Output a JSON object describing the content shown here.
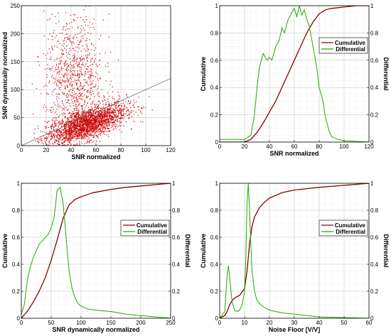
{
  "chart_data": [
    {
      "id": "tl",
      "type": "scatter",
      "xlabel": "SNR normalized",
      "ylabel": "SNR dynamically normalized",
      "xlim": [
        0,
        120
      ],
      "ylim": [
        0,
        250
      ],
      "xticks": [
        0,
        20,
        40,
        60,
        80,
        100,
        120
      ],
      "yticks": [
        0,
        50,
        100,
        150,
        200,
        250
      ],
      "grid": true,
      "series": [
        {
          "kind": "points",
          "color": "#cc0000",
          "clusters": [
            {
              "x_center": 52,
              "x_spread": 16,
              "slope": 0.75,
              "y_spread": 14,
              "count": 2400
            },
            {
              "x_center": 42,
              "x_spread": 12,
              "y_center": 120,
              "y_spread": 55,
              "count": 900
            }
          ]
        },
        {
          "kind": "trend",
          "color": "#777777",
          "x": [
            0,
            120
          ],
          "y": [
            0,
            120
          ]
        }
      ]
    },
    {
      "id": "tr",
      "type": "line",
      "xlabel": "SNR normalized",
      "ylabel_left": "Cumulative",
      "ylabel_right": "Differential",
      "xlim": [
        0,
        120
      ],
      "ylim": [
        0,
        1
      ],
      "xticks": [
        0,
        20,
        40,
        60,
        80,
        100,
        120
      ],
      "yticks": [
        0,
        0.2,
        0.4,
        0.6,
        0.8,
        1
      ],
      "grid": true,
      "legend": "top-right",
      "series": [
        {
          "name": "Cumulative",
          "color": "#8b0000",
          "x": [
            0,
            20,
            25,
            30,
            35,
            40,
            45,
            50,
            55,
            60,
            65,
            70,
            75,
            80,
            85,
            90,
            100,
            110,
            120
          ],
          "y": [
            0,
            0,
            0.02,
            0.07,
            0.14,
            0.22,
            0.3,
            0.4,
            0.5,
            0.6,
            0.7,
            0.8,
            0.88,
            0.94,
            0.97,
            0.98,
            0.99,
            1,
            1
          ]
        },
        {
          "name": "Differential",
          "color": "#22aa00",
          "x": [
            0,
            20,
            25,
            28,
            30,
            32,
            35,
            38,
            40,
            42,
            45,
            48,
            50,
            52,
            55,
            58,
            60,
            62,
            64,
            66,
            68,
            70,
            72,
            75,
            78,
            80,
            83,
            85,
            88,
            90,
            95,
            100,
            120
          ],
          "y": [
            0.02,
            0.02,
            0.05,
            0.2,
            0.4,
            0.55,
            0.65,
            0.6,
            0.62,
            0.6,
            0.7,
            0.75,
            0.84,
            0.8,
            0.9,
            0.95,
            0.98,
            0.92,
            1.0,
            0.93,
            0.97,
            0.9,
            0.85,
            0.7,
            0.55,
            0.4,
            0.3,
            0.18,
            0.08,
            0.04,
            0.02,
            0.01,
            0
          ]
        }
      ]
    },
    {
      "id": "bl",
      "type": "line",
      "xlabel": "SNR dynamically normalized",
      "ylabel_left": "Cumulative",
      "ylabel_right": "Differential",
      "xlim": [
        0,
        250
      ],
      "ylim": [
        0,
        1
      ],
      "xticks": [
        0,
        50,
        100,
        150,
        200,
        250
      ],
      "yticks": [
        0,
        0.2,
        0.4,
        0.6,
        0.8,
        1
      ],
      "grid": true,
      "legend": "middle-right",
      "series": [
        {
          "name": "Cumulative",
          "color": "#8b0000",
          "x": [
            0,
            10,
            20,
            30,
            40,
            50,
            60,
            70,
            80,
            90,
            100,
            120,
            150,
            175,
            200,
            225,
            250
          ],
          "y": [
            0,
            0.05,
            0.12,
            0.2,
            0.3,
            0.43,
            0.58,
            0.74,
            0.84,
            0.88,
            0.9,
            0.93,
            0.955,
            0.97,
            0.98,
            0.99,
            1
          ]
        },
        {
          "name": "Differential",
          "color": "#22aa00",
          "x": [
            0,
            5,
            10,
            15,
            20,
            25,
            30,
            35,
            40,
            45,
            50,
            55,
            60,
            65,
            70,
            75,
            80,
            85,
            90,
            95,
            100,
            110,
            125,
            150,
            175,
            200,
            225,
            250
          ],
          "y": [
            0.03,
            0.1,
            0.28,
            0.38,
            0.45,
            0.5,
            0.55,
            0.57,
            0.6,
            0.62,
            0.67,
            0.75,
            0.95,
            0.97,
            0.85,
            0.6,
            0.35,
            0.22,
            0.15,
            0.11,
            0.09,
            0.07,
            0.06,
            0.05,
            0.03,
            0.02,
            0.01,
            0
          ]
        }
      ]
    },
    {
      "id": "br",
      "type": "line",
      "xlabel": "Noise Floor [V/V]",
      "ylabel_left": "Cumulative",
      "ylabel_right": "Differential",
      "xlim": [
        0,
        60
      ],
      "ylim": [
        0,
        1
      ],
      "xticks": [
        0,
        10,
        20,
        30,
        40,
        50,
        60
      ],
      "yticks": [
        0,
        0.2,
        0.4,
        0.6,
        0.8,
        1
      ],
      "grid": true,
      "legend": "middle-right",
      "series": [
        {
          "name": "Cumulative",
          "color": "#8b0000",
          "x": [
            0,
            2,
            3,
            4,
            5,
            6,
            8,
            10,
            11,
            12,
            13,
            14,
            16,
            18,
            20,
            25,
            30,
            40,
            50,
            60
          ],
          "y": [
            0,
            0.02,
            0.05,
            0.1,
            0.13,
            0.15,
            0.17,
            0.22,
            0.35,
            0.55,
            0.68,
            0.75,
            0.82,
            0.86,
            0.89,
            0.93,
            0.95,
            0.97,
            0.985,
            1
          ]
        },
        {
          "name": "Differential",
          "color": "#22aa00",
          "x": [
            0,
            2,
            3,
            3.5,
            4,
            5,
            6,
            7,
            8,
            9,
            10,
            10.5,
            11,
            11.5,
            12,
            12.5,
            13,
            14,
            15,
            17,
            20,
            25,
            30,
            40,
            50,
            60
          ],
          "y": [
            0,
            0.05,
            0.32,
            0.39,
            0.3,
            0.12,
            0.06,
            0.05,
            0.06,
            0.1,
            0.2,
            0.45,
            0.85,
            1.0,
            0.8,
            0.55,
            0.35,
            0.2,
            0.13,
            0.09,
            0.06,
            0.04,
            0.03,
            0.01,
            0.005,
            0
          ]
        }
      ]
    }
  ]
}
